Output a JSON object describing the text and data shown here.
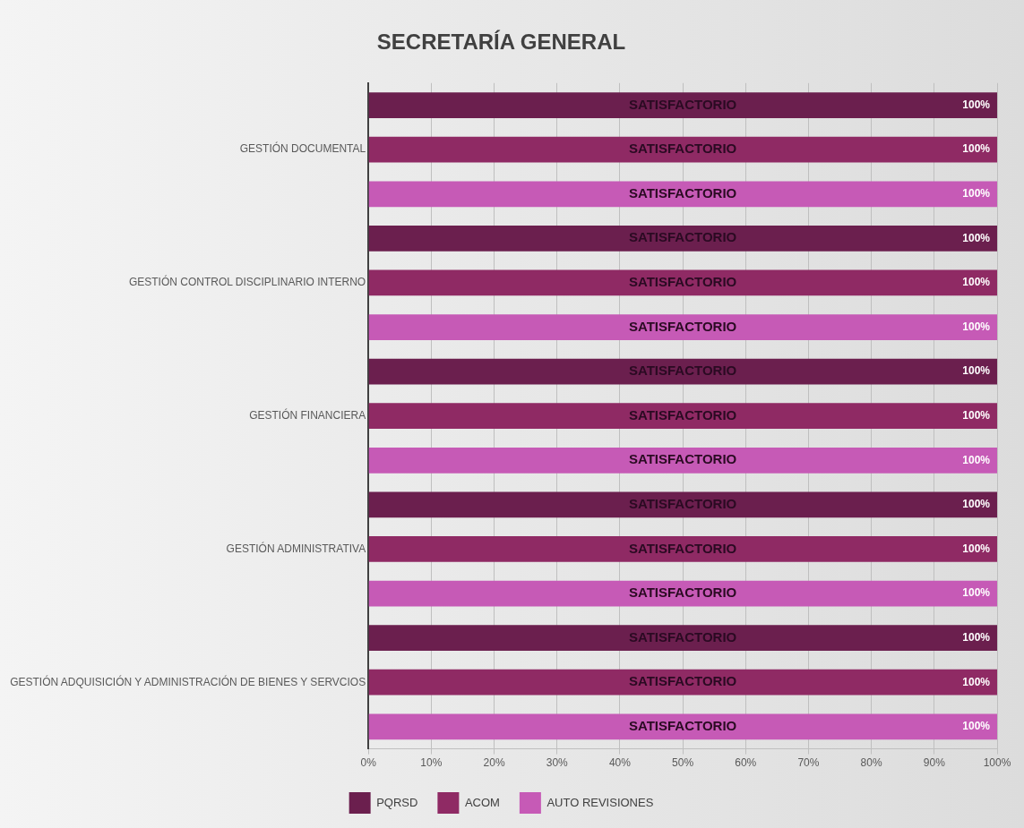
{
  "chart_data": {
    "type": "bar",
    "orientation": "horizontal",
    "title": "SECRETARÍA GENERAL",
    "categories": [
      "GESTIÓN DOCUMENTAL",
      "GESTIÓN CONTROL DISCIPLINARIO INTERNO",
      "GESTIÓN FINANCIERA",
      "GESTIÓN ADMINISTRATIVA",
      "GESTIÓN ADQUISICIÓN Y ADMINISTRACIÓN DE BIENES Y SERVCIOS"
    ],
    "series": [
      {
        "name": "PQRSD",
        "color": "#6b1f4e",
        "values": [
          100,
          100,
          100,
          100,
          100
        ],
        "value_labels": [
          "100%",
          "100%",
          "100%",
          "100%",
          "100%"
        ]
      },
      {
        "name": "ACOM",
        "color": "#8f2a64",
        "values": [
          100,
          100,
          100,
          100,
          100
        ],
        "value_labels": [
          "100%",
          "100%",
          "100%",
          "100%",
          "100%"
        ]
      },
      {
        "name": "AUTO REVISIONES",
        "color": "#c65ab6",
        "values": [
          100,
          100,
          100,
          100,
          100
        ],
        "value_labels": [
          "100%",
          "100%",
          "100%",
          "100%",
          "100%"
        ]
      }
    ],
    "xlim": [
      0,
      100
    ],
    "xticks": [
      {
        "value": 0,
        "label": "0%"
      },
      {
        "value": 10,
        "label": "10%"
      },
      {
        "value": 20,
        "label": "20%"
      },
      {
        "value": 30,
        "label": "30%"
      },
      {
        "value": 40,
        "label": "40%"
      },
      {
        "value": 50,
        "label": "50%"
      },
      {
        "value": 60,
        "label": "60%"
      },
      {
        "value": 70,
        "label": "70%"
      },
      {
        "value": 80,
        "label": "80%"
      },
      {
        "value": 90,
        "label": "90%"
      },
      {
        "value": 100,
        "label": "100%"
      }
    ],
    "grid": "x",
    "legend": "bottom",
    "annotations": [
      "SATISFACTORIO",
      "SATISFACTORIO",
      "SATISFACTORIO",
      "SATISFACTORIO",
      "SATISFACTORIO",
      "SATISFACTORIO",
      "SATISFACTORIO",
      "SATISFACTORIO",
      "SATISFACTORIO",
      "SATISFACTORIO",
      "SATISFACTORIO",
      "SATISFACTORIO",
      "SATISFACTORIO",
      "SATISFACTORIO",
      "SATISFACTORIO"
    ]
  }
}
